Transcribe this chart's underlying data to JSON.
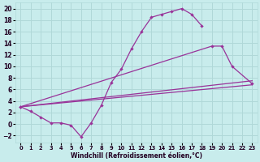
{
  "xlabel": "Windchill (Refroidissement éolien,°C)",
  "bg_color": "#c8ecec",
  "grid_color": "#b0d8d8",
  "line_color": "#993399",
  "xlim": [
    -0.5,
    23.5
  ],
  "ylim": [
    -3.2,
    21.0
  ],
  "xticks": [
    0,
    1,
    2,
    3,
    4,
    5,
    6,
    7,
    8,
    9,
    10,
    11,
    12,
    13,
    14,
    15,
    16,
    17,
    18,
    19,
    20,
    21,
    22,
    23
  ],
  "yticks": [
    -2,
    0,
    2,
    4,
    6,
    8,
    10,
    12,
    14,
    16,
    18,
    20
  ],
  "line1_x": [
    0,
    1,
    2,
    3,
    4,
    5,
    6,
    7,
    8,
    9,
    10,
    11,
    12,
    13,
    14,
    15,
    16,
    17,
    18
  ],
  "line1_y": [
    3.0,
    2.2,
    1.2,
    0.2,
    0.2,
    -0.2,
    -2.2,
    0.2,
    3.2,
    7.2,
    9.5,
    13.0,
    16.0,
    18.5,
    19.0,
    19.5,
    20.0,
    19.0,
    17.0
  ],
  "line2_x": [
    0,
    19,
    20,
    21,
    23
  ],
  "line2_y": [
    3.0,
    13.5,
    13.5,
    10.0,
    7.0
  ],
  "line3_x": [
    0,
    23
  ],
  "line3_y": [
    3.0,
    6.8
  ],
  "line4_x": [
    0,
    23
  ],
  "line4_y": [
    3.0,
    7.5
  ]
}
